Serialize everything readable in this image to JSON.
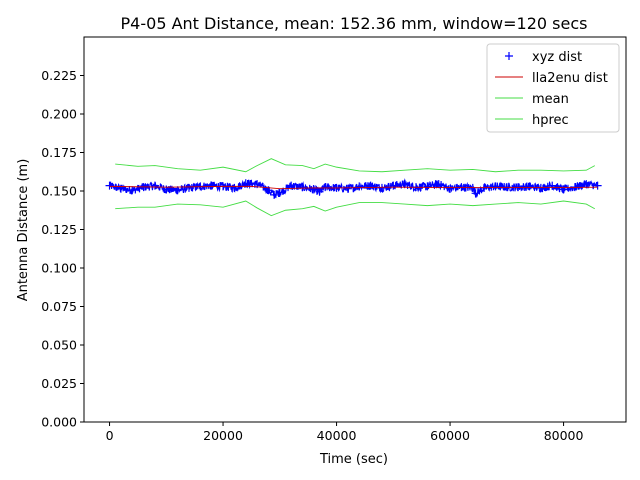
{
  "chart_data": {
    "type": "line",
    "title": "P4-05 Ant Distance, mean: 152.36 mm, window=120 secs",
    "xlabel": "Time (sec)",
    "ylabel": "Antenna Distance (m)",
    "xlim": [
      -4500,
      91000
    ],
    "ylim": [
      0.0,
      0.25
    ],
    "xticks": [
      0,
      20000,
      40000,
      60000,
      80000
    ],
    "yticks": [
      0.0,
      0.025,
      0.05,
      0.075,
      0.1,
      0.125,
      0.15,
      0.175,
      0.2,
      0.225
    ],
    "ytick_labels": [
      "0.000",
      "0.025",
      "0.050",
      "0.075",
      "0.100",
      "0.125",
      "0.150",
      "0.175",
      "0.200",
      "0.225"
    ],
    "legend_position": "top-right",
    "grid": false,
    "series": [
      {
        "name": "xyz dist",
        "style": "marker-plus",
        "color": "#0000ff",
        "x": [
          0,
          2000,
          4000,
          6000,
          8000,
          10000,
          12000,
          14000,
          16000,
          18000,
          20000,
          22000,
          24000,
          26000,
          28000,
          29000,
          30000,
          32000,
          34000,
          36000,
          37000,
          38000,
          40000,
          42000,
          44000,
          46000,
          48000,
          50000,
          52000,
          54000,
          56000,
          58000,
          60000,
          62000,
          64000,
          64500,
          66000,
          68000,
          70000,
          72000,
          74000,
          76000,
          78000,
          80000,
          82000,
          84000,
          86000
        ],
        "y": [
          0.1535,
          0.1515,
          0.1505,
          0.1525,
          0.1535,
          0.151,
          0.1505,
          0.152,
          0.153,
          0.1535,
          0.153,
          0.152,
          0.155,
          0.1545,
          0.1505,
          0.1475,
          0.149,
          0.1535,
          0.1525,
          0.151,
          0.1495,
          0.1525,
          0.152,
          0.1515,
          0.153,
          0.1535,
          0.152,
          0.1535,
          0.1545,
          0.1525,
          0.153,
          0.1545,
          0.1515,
          0.1525,
          0.152,
          0.1485,
          0.152,
          0.153,
          0.1525,
          0.1525,
          0.153,
          0.152,
          0.1535,
          0.151,
          0.1525,
          0.1545,
          0.1535
        ]
      },
      {
        "name": "lla2enu dist",
        "style": "line",
        "color": "#cc0000",
        "x": [
          0,
          10000,
          20000,
          25000,
          30000,
          35000,
          40000,
          50000,
          60000,
          70000,
          80000,
          86000
        ],
        "y": [
          0.153,
          0.1525,
          0.153,
          0.153,
          0.1515,
          0.152,
          0.152,
          0.1525,
          0.1522,
          0.1522,
          0.1522,
          0.1525
        ]
      },
      {
        "name": "mean",
        "style": "line",
        "color": "#44dd44",
        "x": [
          1000,
          5000,
          8000,
          12000,
          16000,
          20000,
          24000,
          26000,
          28500,
          31000,
          34000,
          36000,
          38000,
          40000,
          44000,
          48000,
          52000,
          56000,
          60000,
          64000,
          68000,
          72000,
          76000,
          80000,
          84000,
          85500
        ],
        "y": [
          0.1675,
          0.166,
          0.1665,
          0.1645,
          0.1635,
          0.1655,
          0.1625,
          0.1665,
          0.171,
          0.167,
          0.1665,
          0.1645,
          0.1675,
          0.1655,
          0.163,
          0.1625,
          0.1635,
          0.1645,
          0.1635,
          0.164,
          0.1625,
          0.1635,
          0.1635,
          0.163,
          0.1635,
          0.1665
        ]
      },
      {
        "name": "hprec",
        "style": "line",
        "color": "#44dd44",
        "x": [
          1000,
          5000,
          8000,
          12000,
          16000,
          20000,
          24000,
          26000,
          28500,
          31000,
          34000,
          36000,
          38000,
          40000,
          44000,
          48000,
          52000,
          56000,
          60000,
          64000,
          68000,
          72000,
          76000,
          80000,
          84000,
          85500
        ],
        "y": [
          0.1385,
          0.1395,
          0.1395,
          0.1415,
          0.141,
          0.1395,
          0.1435,
          0.139,
          0.134,
          0.1375,
          0.1385,
          0.14,
          0.137,
          0.1395,
          0.1425,
          0.1425,
          0.1415,
          0.1405,
          0.1415,
          0.1405,
          0.1415,
          0.1425,
          0.1415,
          0.1435,
          0.1415,
          0.1385
        ]
      }
    ]
  }
}
